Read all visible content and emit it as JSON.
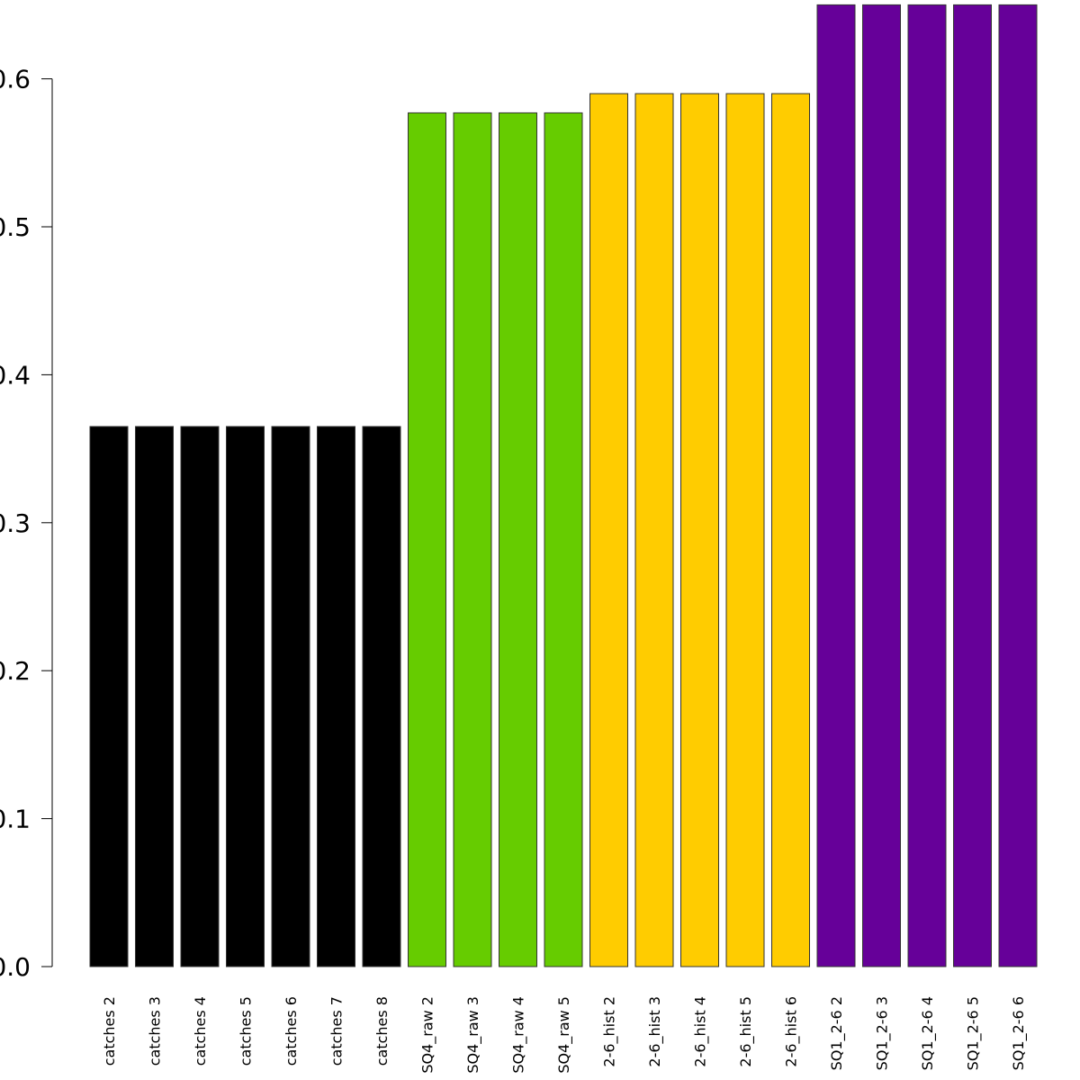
{
  "chart_data": {
    "type": "bar",
    "categories": [
      "catches 2",
      "catches 3",
      "catches 4",
      "catches 5",
      "catches 6",
      "catches 7",
      "catches 8",
      "SQ4_raw 2",
      "SQ4_raw 3",
      "SQ4_raw 4",
      "SQ4_raw 5",
      "2-6_hist 2",
      "2-6_hist 3",
      "2-6_hist 4",
      "2-6_hist 5",
      "2-6_hist 6",
      "SQ1_2-6 2",
      "SQ1_2-6 3",
      "SQ1_2-6 4",
      "SQ1_2-6 5",
      "SQ1_2-6 6"
    ],
    "values": [
      0.365,
      0.365,
      0.365,
      0.365,
      0.365,
      0.365,
      0.365,
      0.577,
      0.577,
      0.577,
      0.577,
      0.59,
      0.59,
      0.59,
      0.59,
      0.59,
      0.65,
      0.65,
      0.65,
      0.65,
      0.65
    ],
    "colors": [
      "#000000",
      "#000000",
      "#000000",
      "#000000",
      "#000000",
      "#000000",
      "#000000",
      "#66cc00",
      "#66cc00",
      "#66cc00",
      "#66cc00",
      "#ffcc00",
      "#ffcc00",
      "#ffcc00",
      "#ffcc00",
      "#ffcc00",
      "#660099",
      "#660099",
      "#660099",
      "#660099",
      "#660099"
    ],
    "yticks": [
      "0.0",
      "0.1",
      "0.2",
      "0.3",
      "0.4",
      "0.5",
      "0.6"
    ],
    "ylim": [
      0,
      0.65
    ],
    "title": "",
    "xlabel": "",
    "ylabel": "",
    "grid": false,
    "legend": "none"
  }
}
